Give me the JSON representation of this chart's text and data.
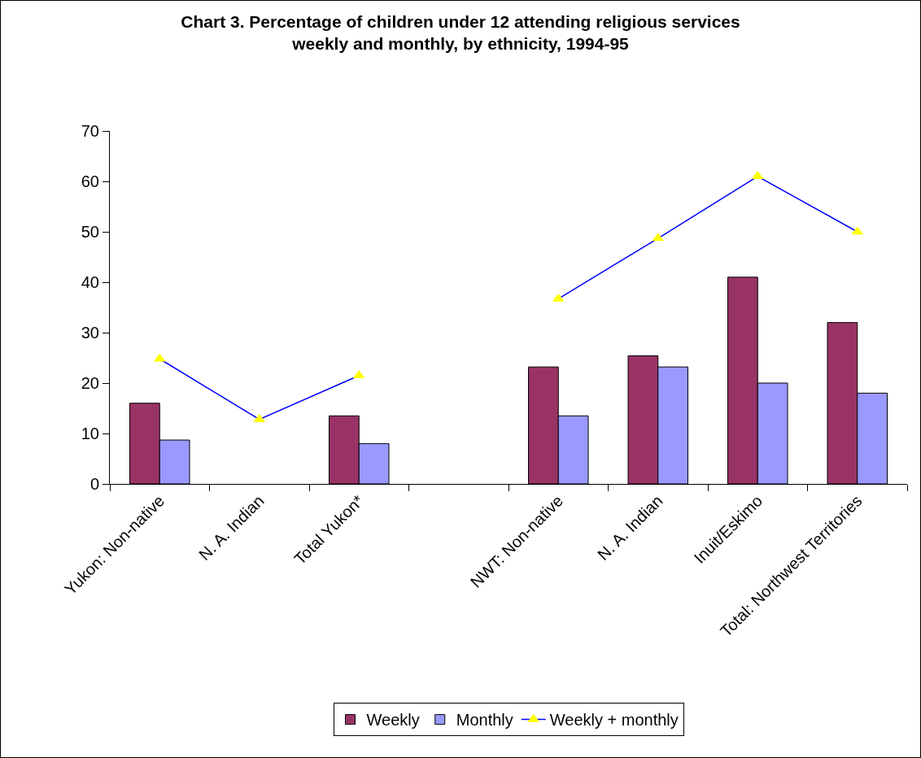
{
  "chart_data": {
    "type": "bar",
    "title": "Chart 3. Percentage of children under 12 attending religious services weekly and monthly, by ethnicity, 1994-95",
    "categories": [
      "Yukon: Non-native",
      "N. A. Indian",
      "Total Yukon*",
      null,
      "NWT: Non-native",
      "N. A. Indian",
      "Inuit/Eskimo",
      "Total: Northwest Territories"
    ],
    "series": [
      {
        "name": "Weekly",
        "color": "#993366",
        "values": [
          16,
          null,
          13.5,
          null,
          23.2,
          25.4,
          41,
          32
        ]
      },
      {
        "name": "Monthly",
        "color": "#9999ff",
        "values": [
          8.7,
          null,
          8,
          null,
          13.5,
          23.2,
          20,
          18
        ]
      },
      {
        "name": "Weekly + monthly",
        "type": "line",
        "color": "#0000ff",
        "colors": [
          "#ffff00",
          "#ffff00",
          "#ffff00",
          "#ffff00",
          "#ffff00",
          "#ffff00",
          "#ffff00",
          "#ffff00"
        ],
        "values": [
          24.8,
          12.8,
          21.5,
          null,
          36.7,
          48.7,
          61,
          50
        ]
      }
    ],
    "ylim": [
      0,
      70
    ],
    "yticks": [
      0,
      10,
      20,
      30,
      40,
      50,
      60,
      70
    ],
    "grid": false,
    "legend": "bottom",
    "marker": "triangle",
    "line_style": "solid"
  }
}
